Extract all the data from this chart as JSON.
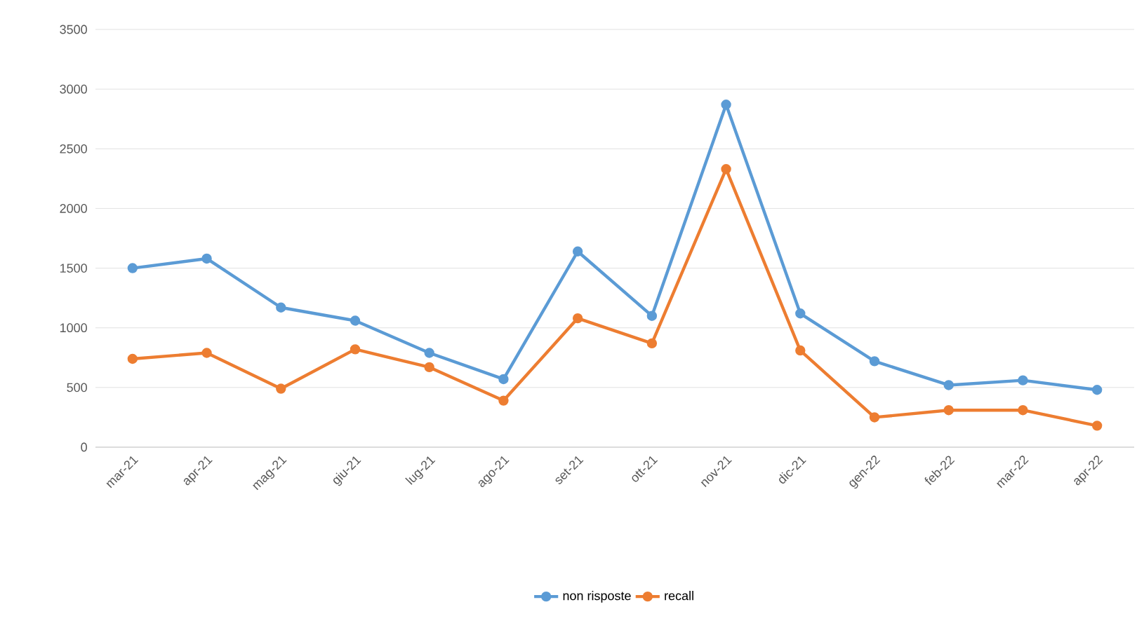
{
  "chart_data": {
    "type": "line",
    "categories": [
      "mar-21",
      "apr-21",
      "mag-21",
      "giu-21",
      "lug-21",
      "ago-21",
      "set-21",
      "ott-21",
      "nov-21",
      "dic-21",
      "gen-22",
      "feb-22",
      "mar-22",
      "apr-22"
    ],
    "series": [
      {
        "name": "non risposte",
        "color": "#5b9bd5",
        "values": [
          1500,
          1580,
          1170,
          1060,
          790,
          570,
          1640,
          1100,
          2870,
          1120,
          720,
          520,
          560,
          480
        ]
      },
      {
        "name": "recall",
        "color": "#ed7d31",
        "values": [
          740,
          790,
          490,
          820,
          670,
          390,
          1080,
          870,
          2330,
          810,
          250,
          310,
          310,
          180
        ]
      }
    ],
    "ylim": [
      0,
      3500
    ],
    "yticks": [
      0,
      500,
      1000,
      1500,
      2000,
      2500,
      3000,
      3500
    ],
    "grid": "y",
    "legend": "bottom",
    "marker": "circle",
    "line_style": "solid"
  }
}
